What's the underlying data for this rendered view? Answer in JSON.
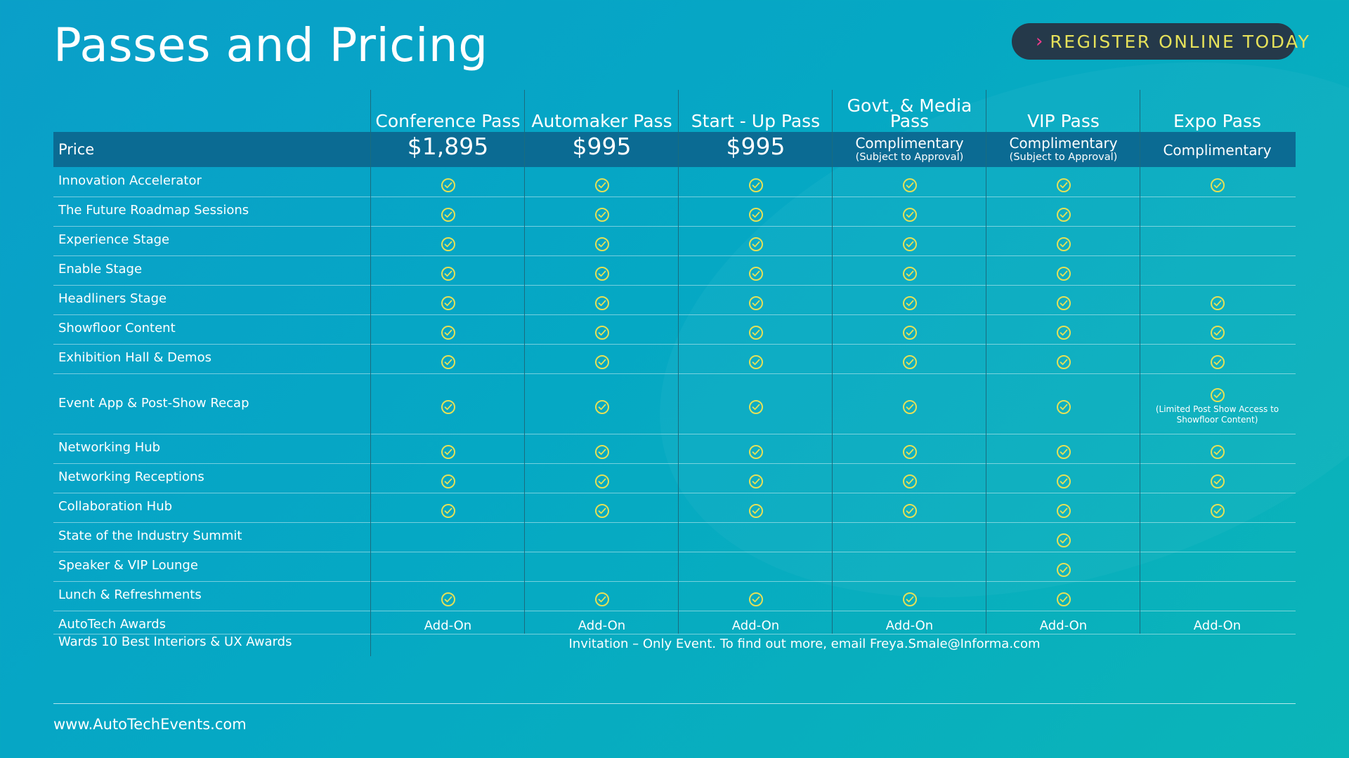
{
  "title": "Passes and Pricing",
  "register": {
    "label": "REGISTER ONLINE TODAY"
  },
  "columns": [
    {
      "name": "Conference Pass",
      "price": "$1,895",
      "price_note": ""
    },
    {
      "name": "Automaker Pass",
      "price": "$995",
      "price_note": ""
    },
    {
      "name": "Start - Up Pass",
      "price": "$995",
      "price_note": ""
    },
    {
      "name": "Govt. & Media Pass",
      "price": "Complimentary",
      "price_note": "(Subject to Approval)"
    },
    {
      "name": "VIP Pass",
      "price": "Complimentary",
      "price_note": "(Subject to Approval)"
    },
    {
      "name": "Expo Pass",
      "price": "Complimentary",
      "price_note": ""
    }
  ],
  "price_label": "Price",
  "rows": [
    {
      "label": "Innovation Accelerator",
      "cells": [
        "check",
        "check",
        "check",
        "check",
        "check",
        "check"
      ]
    },
    {
      "label": "The Future Roadmap Sessions",
      "cells": [
        "check",
        "check",
        "check",
        "check",
        "check",
        ""
      ]
    },
    {
      "label": "Experience Stage",
      "cells": [
        "check",
        "check",
        "check",
        "check",
        "check",
        ""
      ]
    },
    {
      "label": "Enable Stage",
      "cells": [
        "check",
        "check",
        "check",
        "check",
        "check",
        ""
      ]
    },
    {
      "label": "Headliners Stage",
      "cells": [
        "check",
        "check",
        "check",
        "check",
        "check",
        "check"
      ]
    },
    {
      "label": "Showfloor Content",
      "cells": [
        "check",
        "check",
        "check",
        "check",
        "check",
        "check"
      ]
    },
    {
      "label": "Exhibition Hall & Demos",
      "cells": [
        "check",
        "check",
        "check",
        "check",
        "check",
        "check"
      ]
    },
    {
      "label": "Event App & Post-Show Recap",
      "cells": [
        "check",
        "check",
        "check",
        "check",
        "check",
        "check"
      ],
      "note": "(Limited Post Show Access to Showfloor Content)"
    },
    {
      "label": "Networking Hub",
      "cells": [
        "check",
        "check",
        "check",
        "check",
        "check",
        "check"
      ]
    },
    {
      "label": "Networking Receptions",
      "cells": [
        "check",
        "check",
        "check",
        "check",
        "check",
        "check"
      ]
    },
    {
      "label": "Collaboration Hub",
      "cells": [
        "check",
        "check",
        "check",
        "check",
        "check",
        "check"
      ]
    },
    {
      "label": "State of the Industry Summit",
      "cells": [
        "",
        "",
        "",
        "",
        "check",
        ""
      ]
    },
    {
      "label": "Speaker & VIP Lounge",
      "cells": [
        "",
        "",
        "",
        "",
        "check",
        ""
      ]
    },
    {
      "label": "Lunch & Refreshments",
      "cells": [
        "check",
        "check",
        "check",
        "check",
        "check",
        ""
      ]
    },
    {
      "label": "AutoTech Awards",
      "cells": [
        "Add-On",
        "Add-On",
        "Add-On",
        "Add-On",
        "Add-On",
        "Add-On"
      ]
    }
  ],
  "last_row": {
    "label": "Wards 10 Best Interiors & UX Awards",
    "text": "Invitation – Only Event. To find out more, email Freya.Smale@Informa.com"
  },
  "footer": {
    "url": "www.AutoTechEvents.com"
  },
  "colors": {
    "check": "#e3e058",
    "price_band": "#0b6b93",
    "button": "#25394a",
    "button_text": "#e6e15a",
    "chevron": "#f03c8c"
  }
}
